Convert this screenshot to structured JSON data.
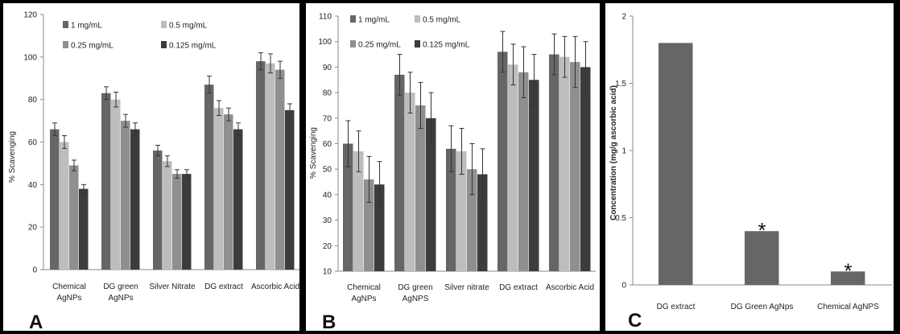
{
  "panel_letters": [
    "A",
    "B",
    "C"
  ],
  "chart_data": [
    {
      "type": "bar",
      "ylabel": "% Scavenging",
      "ylim": [
        0,
        120
      ],
      "yticks": [
        0,
        20,
        40,
        60,
        80,
        100,
        120
      ],
      "categories": [
        [
          "Chemical",
          "AgNPs"
        ],
        [
          "DG green",
          "AgNPs"
        ],
        [
          "Silver Nitrate"
        ],
        [
          "DG extract"
        ],
        [
          "Ascorbic Acid"
        ]
      ],
      "legend_position": "top",
      "series": [
        {
          "name": "1 mg/mL",
          "color": "#666666",
          "values": [
            66,
            83,
            56,
            87,
            98
          ],
          "errors": [
            3,
            3,
            2.5,
            4,
            4
          ]
        },
        {
          "name": "0.5 mg/mL",
          "color": "#bdbdbd",
          "values": [
            60,
            80,
            51,
            76,
            97
          ],
          "errors": [
            3,
            3.5,
            2.5,
            3.5,
            4.5
          ]
        },
        {
          "name": "0.25 mg/mL",
          "color": "#8f8f8f",
          "values": [
            49,
            70,
            45,
            73,
            94
          ],
          "errors": [
            2.5,
            3,
            2,
            3,
            4
          ]
        },
        {
          "name": "0.125 mg/mL",
          "color": "#3c3c3c",
          "values": [
            38,
            66,
            45,
            66,
            75
          ],
          "errors": [
            2,
            3,
            2,
            3,
            3
          ]
        }
      ]
    },
    {
      "type": "bar",
      "ylabel": "% Scavenging",
      "ylim": [
        10,
        110
      ],
      "yticks": [
        10,
        20,
        30,
        40,
        50,
        60,
        70,
        80,
        90,
        100,
        110
      ],
      "categories": [
        [
          "Chemical",
          "AgNPs"
        ],
        [
          "DG green",
          "AgNPS"
        ],
        [
          "Silver nitrate"
        ],
        [
          "DG extract"
        ],
        [
          "Ascorbic Acid"
        ]
      ],
      "legend_position": "top",
      "series": [
        {
          "name": "1 mg/mL",
          "color": "#666666",
          "values": [
            60,
            87,
            58,
            96,
            95
          ],
          "errors": [
            9,
            8,
            9,
            8,
            8
          ]
        },
        {
          "name": "0.5 mg/mL",
          "color": "#bdbdbd",
          "values": [
            57,
            80,
            57,
            91,
            94
          ],
          "errors": [
            8,
            8,
            9,
            8,
            8
          ]
        },
        {
          "name": "0.25 mg/mL",
          "color": "#8f8f8f",
          "values": [
            46,
            75,
            50,
            88,
            92
          ],
          "errors": [
            9,
            9,
            10,
            10,
            10
          ]
        },
        {
          "name": "0.125 mg/mL",
          "color": "#3c3c3c",
          "values": [
            44,
            70,
            48,
            85,
            90
          ],
          "errors": [
            9,
            10,
            10,
            10,
            10
          ]
        }
      ]
    },
    {
      "type": "bar",
      "ylabel": "Concentration (mg/g ascorbic acid)",
      "ylim": [
        0,
        2
      ],
      "yticks": [
        0,
        0.5,
        1,
        1.5,
        2
      ],
      "ytick_labels": [
        "0",
        "0.5",
        "1",
        "1.5",
        "2"
      ],
      "categories": [
        [
          "DG extract"
        ],
        [
          "DG Green AgNps"
        ],
        [
          "Chemical AgNPS"
        ]
      ],
      "series": [
        {
          "color": "#666666",
          "values": [
            1.8,
            0.4,
            0.1
          ]
        }
      ],
      "annotations": [
        "",
        "*",
        "*"
      ]
    }
  ]
}
